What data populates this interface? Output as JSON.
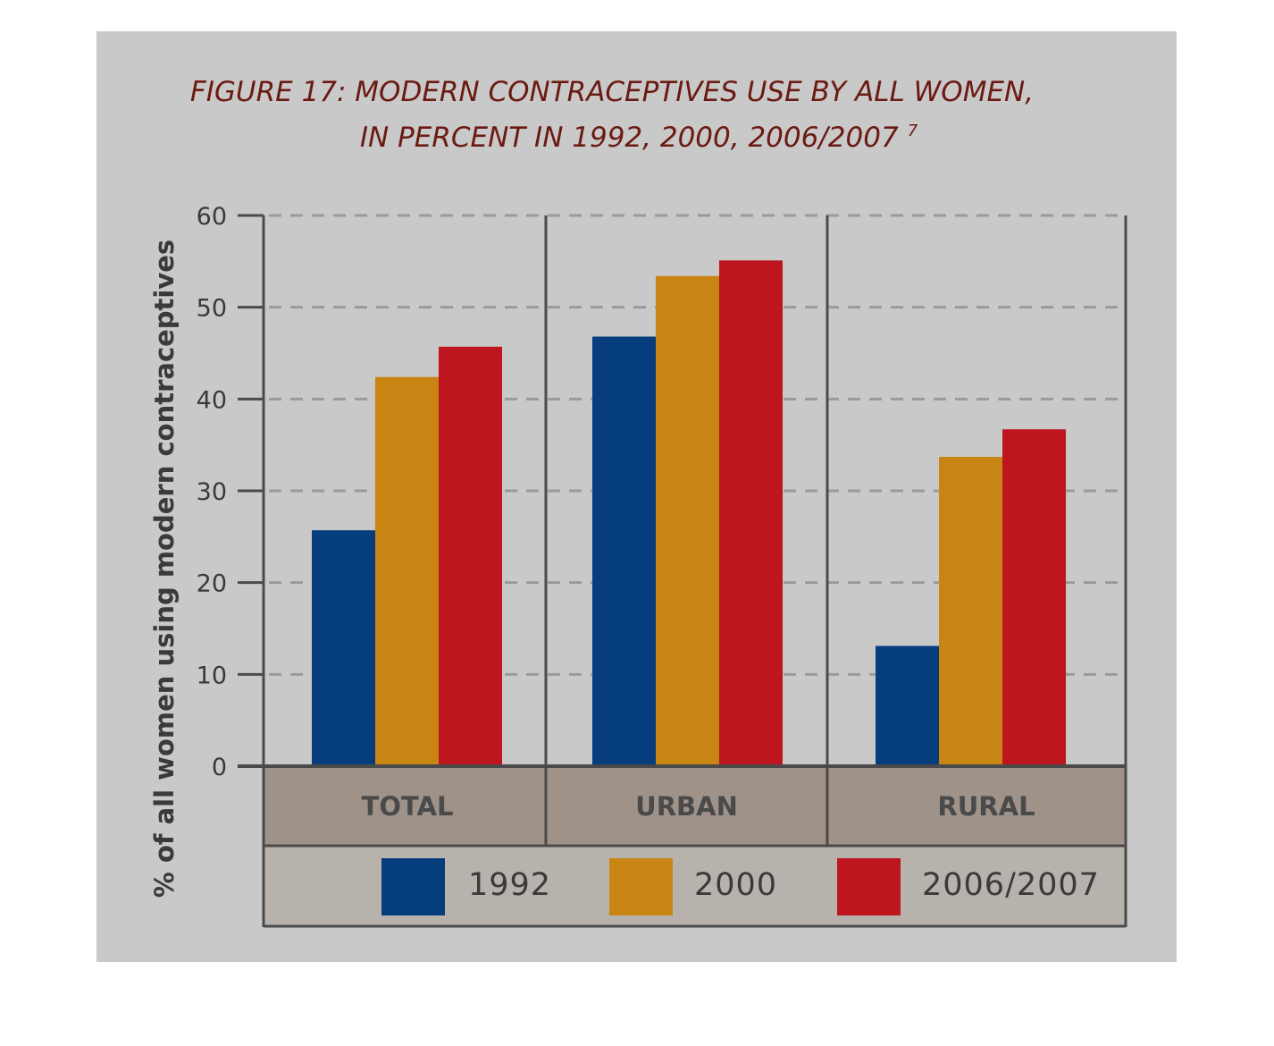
{
  "chart_data": {
    "type": "bar",
    "title_lines": [
      "FIGURE 17: MODERN CONTRACEPTIVES USE BY ALL WOMEN,",
      "IN PERCENT IN 1992, 2000, 2006/2007"
    ],
    "title_footnote": "7",
    "ylabel": "% of all women using modern contraceptives",
    "xlabel": "",
    "ylim": [
      0,
      60
    ],
    "yticks": [
      0,
      10,
      20,
      30,
      40,
      50,
      60
    ],
    "grid": true,
    "legend_position": "bottom",
    "categories": [
      "TOTAL",
      "URBAN",
      "RURAL"
    ],
    "series": [
      {
        "name": "1992",
        "color": "#053d7d",
        "values": [
          25.7,
          46.8,
          13.1
        ]
      },
      {
        "name": "2000",
        "color": "#c88514",
        "values": [
          42.4,
          53.4,
          33.7
        ]
      },
      {
        "name": "2006/2007",
        "color": "#bd161e",
        "values": [
          45.7,
          55.1,
          36.7
        ]
      }
    ],
    "colors": {
      "background": "#c9c9c9",
      "category_band": "#9e9289",
      "legend_band": "#b8b2ad",
      "axis": "#4a4a4a",
      "title": "#6b1a12"
    }
  }
}
